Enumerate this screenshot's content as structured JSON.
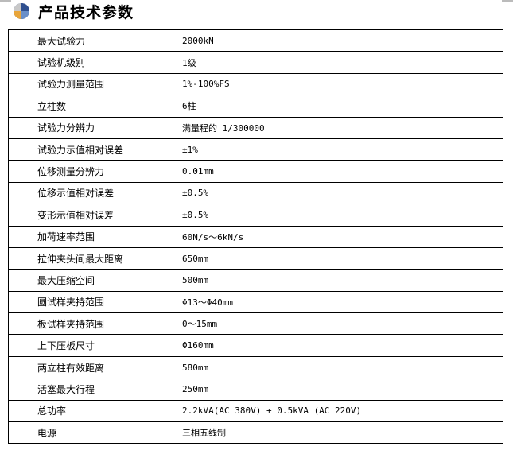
{
  "header": {
    "title": "产品技术参数",
    "icon": "quadrant-circle-icon"
  },
  "rows": [
    {
      "label": "最大试验力",
      "value": "2000kN"
    },
    {
      "label": "试验机级别",
      "value": "1级"
    },
    {
      "label": "试验力测量范围",
      "value": "1%-100%FS"
    },
    {
      "label": "立柱数",
      "value": "6柱"
    },
    {
      "label": "试验力分辨力",
      "value": "满量程的 1/300000"
    },
    {
      "label": "试验力示值相对误差",
      "value": "±1%"
    },
    {
      "label": "位移测量分辨力",
      "value": "0.01mm"
    },
    {
      "label": "位移示值相对误差",
      "value": "±0.5%"
    },
    {
      "label": "变形示值相对误差",
      "value": "±0.5%"
    },
    {
      "label": "加荷速率范围",
      "value": "60N/s～6kN/s"
    },
    {
      "label": "拉伸夹头间最大距离",
      "value": "650mm"
    },
    {
      "label": "最大压缩空间",
      "value": "500mm"
    },
    {
      "label": "圆试样夹持范围",
      "value": "Φ13～Φ40mm"
    },
    {
      "label": "板试样夹持范围",
      "value": "0～15mm"
    },
    {
      "label": "上下压板尺寸",
      "value": "Φ160mm"
    },
    {
      "label": "两立柱有效距离",
      "value": "580mm"
    },
    {
      "label": "活塞最大行程",
      "value": "250mm"
    },
    {
      "label": "总功率",
      "value": "2.2kVA(AC 380V) + 0.5kVA (AC 220V)"
    },
    {
      "label": "电源",
      "value": "三相五线制"
    }
  ]
}
